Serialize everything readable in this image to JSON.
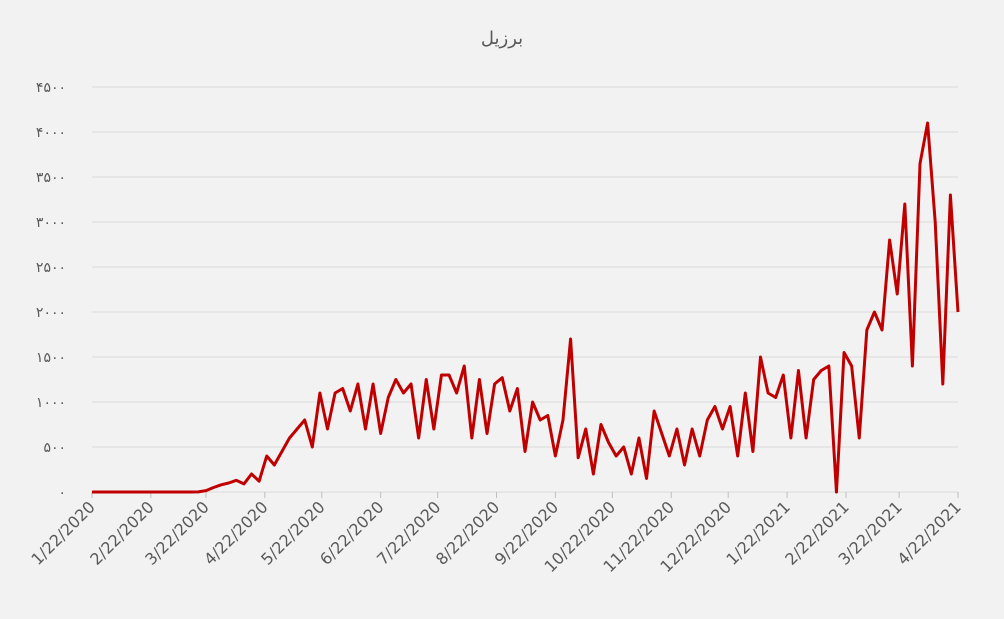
{
  "chart_data": {
    "type": "line",
    "title": "برزیل",
    "x": [
      "1/22/2020",
      "1/26/2020",
      "1/30/2020",
      "2/3/2020",
      "2/7/2020",
      "2/11/2020",
      "2/15/2020",
      "2/19/2020",
      "2/23/2020",
      "2/27/2020",
      "3/2/2020",
      "3/6/2020",
      "3/10/2020",
      "3/14/2020",
      "3/18/2020",
      "3/22/2020",
      "3/26/2020",
      "3/30/2020",
      "4/3/2020",
      "4/7/2020",
      "4/11/2020",
      "4/15/2020",
      "4/19/2020",
      "4/23/2020",
      "4/27/2020",
      "5/1/2020",
      "5/5/2020",
      "5/9/2020",
      "5/13/2020",
      "5/17/2020",
      "5/21/2020",
      "5/25/2020",
      "5/29/2020",
      "6/2/2020",
      "6/6/2020",
      "6/10/2020",
      "6/14/2020",
      "6/18/2020",
      "6/22/2020",
      "6/26/2020",
      "6/30/2020",
      "7/4/2020",
      "7/8/2020",
      "7/12/2020",
      "7/16/2020",
      "7/20/2020",
      "7/24/2020",
      "7/28/2020",
      "8/1/2020",
      "8/5/2020",
      "8/9/2020",
      "8/13/2020",
      "8/17/2020",
      "8/21/2020",
      "8/25/2020",
      "8/29/2020",
      "9/2/2020",
      "9/6/2020",
      "9/10/2020",
      "9/14/2020",
      "9/18/2020",
      "9/22/2020",
      "9/26/2020",
      "9/30/2020",
      "10/4/2020",
      "10/8/2020",
      "10/12/2020",
      "10/16/2020",
      "10/20/2020",
      "10/24/2020",
      "10/28/2020",
      "11/1/2020",
      "11/5/2020",
      "11/9/2020",
      "11/13/2020",
      "11/17/2020",
      "11/21/2020",
      "11/25/2020",
      "11/29/2020",
      "12/3/2020",
      "12/7/2020",
      "12/11/2020",
      "12/15/2020",
      "12/19/2020",
      "12/23/2020",
      "12/27/2020",
      "12/31/2020",
      "1/4/2021",
      "1/8/2021",
      "1/12/2021",
      "1/16/2021",
      "1/20/2021",
      "1/24/2021",
      "1/28/2021",
      "2/1/2021",
      "2/5/2021",
      "2/9/2021",
      "2/13/2021",
      "2/17/2021",
      "2/21/2021",
      "2/25/2021",
      "3/1/2021",
      "3/5/2021",
      "3/9/2021",
      "3/13/2021",
      "3/17/2021",
      "3/21/2021",
      "3/25/2021",
      "3/29/2021",
      "4/2/2021",
      "4/6/2021",
      "4/10/2021",
      "4/14/2021",
      "4/18/2021",
      "4/22/2021"
    ],
    "series": [
      {
        "color": "#c00000",
        "values": [
          0,
          0,
          0,
          0,
          0,
          0,
          0,
          0,
          0,
          0,
          0,
          0,
          0,
          0,
          1,
          15,
          50,
          80,
          100,
          130,
          90,
          200,
          120,
          400,
          300,
          450,
          600,
          700,
          800,
          500,
          1100,
          700,
          1100,
          1150,
          900,
          1200,
          700,
          1200,
          650,
          1050,
          1250,
          1100,
          1200,
          600,
          1250,
          700,
          1300,
          1300,
          1100,
          1400,
          600,
          1250,
          650,
          1200,
          1270,
          900,
          1150,
          450,
          1000,
          800,
          850,
          400,
          800,
          1700,
          380,
          700,
          200,
          750,
          550,
          400,
          500,
          200,
          600,
          150,
          900,
          650,
          400,
          700,
          300,
          700,
          400,
          800,
          950,
          700,
          950,
          400,
          1100,
          450,
          1500,
          1100,
          1050,
          1300,
          600,
          1350,
          600,
          1250,
          1350,
          1400,
          0,
          1550,
          1400,
          600,
          1800,
          2000,
          1800,
          2800,
          2200,
          3200,
          1400,
          3650,
          4100,
          3000,
          1200,
          3300,
          2000
        ]
      }
    ],
    "xlim": [
      "1/22/2020",
      "4/22/2021"
    ],
    "xticks": [
      "1/22/2020",
      "2/22/2020",
      "3/22/2020",
      "4/22/2020",
      "5/22/2020",
      "6/22/2020",
      "7/22/2020",
      "8/22/2020",
      "9/22/2020",
      "10/22/2020",
      "11/22/2020",
      "12/22/2020",
      "1/22/2021",
      "2/22/2021",
      "3/22/2021",
      "4/22/2021"
    ],
    "ylim": [
      0,
      4500
    ],
    "yticks": [
      {
        "value": 0,
        "label": "۰"
      },
      {
        "value": 500,
        "label": "۵۰۰"
      },
      {
        "value": 1000,
        "label": "۱۰۰۰"
      },
      {
        "value": 1500,
        "label": "۱۵۰۰"
      },
      {
        "value": 2000,
        "label": "۲۰۰۰"
      },
      {
        "value": 2500,
        "label": "۲۵۰۰"
      },
      {
        "value": 3000,
        "label": "۳۰۰۰"
      },
      {
        "value": 3500,
        "label": "۳۵۰۰"
      },
      {
        "value": 4000,
        "label": "۴۰۰۰"
      },
      {
        "value": 4500,
        "label": "۴۵۰۰"
      }
    ],
    "grid": true
  }
}
